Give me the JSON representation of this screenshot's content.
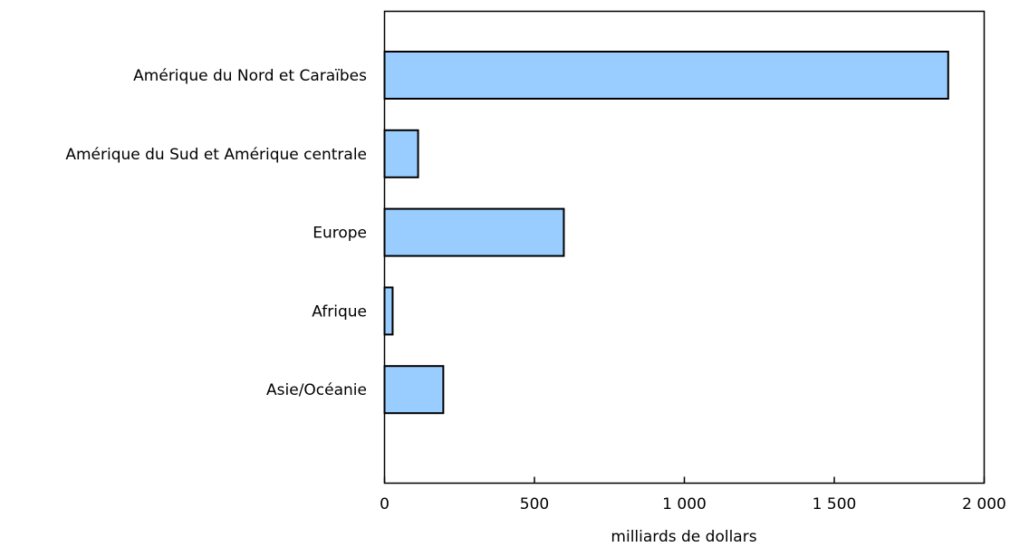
{
  "chart_data": {
    "type": "bar",
    "orientation": "horizontal",
    "categories": [
      "Amérique du Nord et Caraïbes",
      "Amérique du Sud et Amérique centrale",
      "Europe",
      "Afrique",
      "Asie/Océanie"
    ],
    "values": [
      1880,
      112,
      598,
      27,
      196
    ],
    "xlabel": "milliards de dollars",
    "ylabel": "",
    "xlim": [
      0,
      2000
    ],
    "xticks": [
      0,
      500,
      1000,
      1500,
      2000
    ],
    "xtick_labels": [
      "0",
      "500",
      "1 000",
      "1 500",
      "2 000"
    ],
    "grid": false,
    "legend": "none",
    "colors": {
      "bar_fill": "#99ccff",
      "bar_stroke": "#000000"
    }
  }
}
